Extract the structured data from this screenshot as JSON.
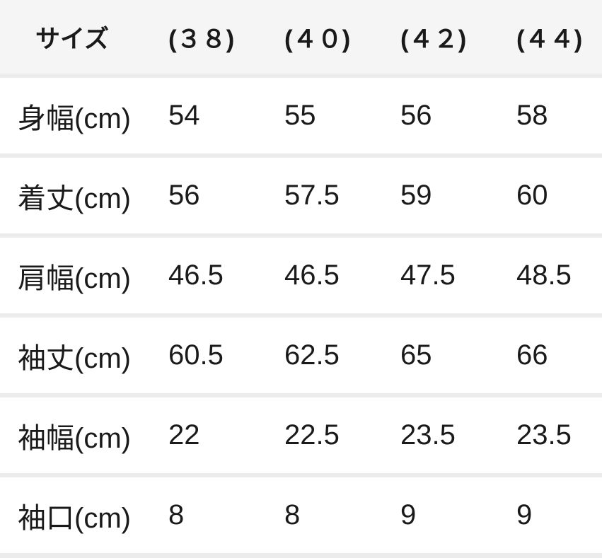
{
  "table": {
    "title": "size-spec-table",
    "unit_note": "cm",
    "colors": {
      "header_bg": "#f5f5f6",
      "separator": "#ececec",
      "row_bg": "#ffffff",
      "text": "#1a1a1a"
    },
    "header": {
      "label": "サイズ",
      "sizes": [
        "(３８)",
        "(４０)",
        "(４２)",
        "(４４)"
      ]
    },
    "rows": [
      {
        "label": "身幅(cm)",
        "values": [
          "54",
          "55",
          "56",
          "58"
        ]
      },
      {
        "label": "着丈(cm)",
        "values": [
          "56",
          "57.5",
          "59",
          "60"
        ]
      },
      {
        "label": "肩幅(cm)",
        "values": [
          "46.5",
          "46.5",
          "47.5",
          "48.5"
        ]
      },
      {
        "label": "袖丈(cm)",
        "values": [
          "60.5",
          "62.5",
          "65",
          "66"
        ]
      },
      {
        "label": "袖幅(cm)",
        "values": [
          "22",
          "22.5",
          "23.5",
          "23.5"
        ]
      },
      {
        "label": "袖口(cm)",
        "values": [
          "8",
          "8",
          "9",
          "9"
        ]
      }
    ]
  }
}
